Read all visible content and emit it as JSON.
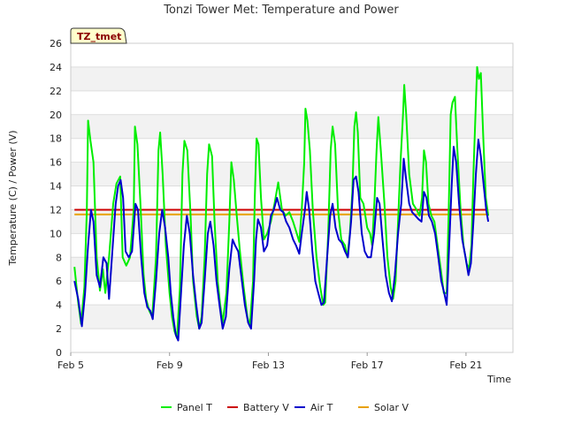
{
  "chart_data": {
    "type": "line",
    "title": "Tonzi Tower Met: Temperature and Power",
    "xlabel": "Time",
    "ylabel": "Temperature (C) / Power (V)",
    "badge": "TZ_tmet",
    "ylim": [
      0,
      26
    ],
    "yticks": [
      0,
      2,
      4,
      6,
      8,
      10,
      12,
      14,
      16,
      18,
      20,
      22,
      24,
      26
    ],
    "xlim": [
      5.0,
      22.9
    ],
    "xticks": [
      {
        "value": 5,
        "label": "Feb 5"
      },
      {
        "value": 9,
        "label": "Feb 9"
      },
      {
        "value": 13,
        "label": "Feb 13"
      },
      {
        "value": 17,
        "label": "Feb 17"
      },
      {
        "value": 21,
        "label": "Feb 21"
      }
    ],
    "series": [
      {
        "name": "Panel T",
        "color": "#00ee00",
        "points": [
          [
            5.15,
            7.2
          ],
          [
            5.3,
            4.2
          ],
          [
            5.42,
            2.4
          ],
          [
            5.55,
            5.5
          ],
          [
            5.65,
            12.0
          ],
          [
            5.7,
            19.5
          ],
          [
            5.8,
            17.8
          ],
          [
            5.92,
            16.0
          ],
          [
            6.05,
            8.0
          ],
          [
            6.18,
            5.2
          ],
          [
            6.3,
            7.0
          ],
          [
            6.4,
            5.0
          ],
          [
            6.55,
            8.0
          ],
          [
            6.72,
            12.5
          ],
          [
            6.85,
            14.2
          ],
          [
            7.0,
            14.8
          ],
          [
            7.1,
            8.0
          ],
          [
            7.25,
            7.3
          ],
          [
            7.4,
            8.0
          ],
          [
            7.55,
            12.0
          ],
          [
            7.6,
            19.0
          ],
          [
            7.7,
            17.5
          ],
          [
            7.82,
            12.5
          ],
          [
            7.95,
            6.5
          ],
          [
            8.05,
            4.5
          ],
          [
            8.18,
            3.5
          ],
          [
            8.3,
            3.0
          ],
          [
            8.45,
            8.0
          ],
          [
            8.55,
            17.0
          ],
          [
            8.62,
            18.5
          ],
          [
            8.72,
            15.0
          ],
          [
            8.85,
            9.0
          ],
          [
            9.0,
            5.0
          ],
          [
            9.1,
            3.0
          ],
          [
            9.2,
            1.8
          ],
          [
            9.3,
            1.2
          ],
          [
            9.42,
            5.5
          ],
          [
            9.52,
            15.0
          ],
          [
            9.6,
            17.8
          ],
          [
            9.72,
            17.0
          ],
          [
            9.85,
            11.5
          ],
          [
            9.95,
            6.0
          ],
          [
            10.1,
            3.0
          ],
          [
            10.2,
            2.0
          ],
          [
            10.3,
            3.0
          ],
          [
            10.42,
            8.0
          ],
          [
            10.52,
            15.0
          ],
          [
            10.6,
            17.5
          ],
          [
            10.72,
            16.5
          ],
          [
            10.82,
            11.0
          ],
          [
            10.95,
            6.0
          ],
          [
            11.05,
            4.0
          ],
          [
            11.15,
            2.5
          ],
          [
            11.3,
            5.0
          ],
          [
            11.42,
            11.0
          ],
          [
            11.5,
            16.0
          ],
          [
            11.6,
            14.5
          ],
          [
            11.72,
            11.5
          ],
          [
            11.85,
            8.5
          ],
          [
            12.0,
            5.5
          ],
          [
            12.15,
            3.0
          ],
          [
            12.25,
            2.2
          ],
          [
            12.38,
            6.0
          ],
          [
            12.45,
            13.0
          ],
          [
            12.52,
            18.0
          ],
          [
            12.6,
            17.5
          ],
          [
            12.7,
            13.0
          ],
          [
            12.82,
            9.5
          ],
          [
            12.95,
            10.0
          ],
          [
            13.1,
            11.0
          ],
          [
            13.25,
            12.5
          ],
          [
            13.4,
            14.3
          ],
          [
            13.55,
            12.0
          ],
          [
            13.7,
            11.5
          ],
          [
            13.85,
            11.8
          ],
          [
            14.0,
            11.0
          ],
          [
            14.15,
            10.0
          ],
          [
            14.25,
            9.3
          ],
          [
            14.35,
            12.0
          ],
          [
            14.45,
            16.0
          ],
          [
            14.5,
            20.5
          ],
          [
            14.58,
            19.5
          ],
          [
            14.68,
            17.0
          ],
          [
            14.8,
            12.0
          ],
          [
            14.95,
            8.0
          ],
          [
            15.1,
            5.5
          ],
          [
            15.22,
            4.0
          ],
          [
            15.3,
            4.2
          ],
          [
            15.42,
            10.0
          ],
          [
            15.52,
            17.0
          ],
          [
            15.6,
            19.0
          ],
          [
            15.7,
            17.5
          ],
          [
            15.82,
            12.0
          ],
          [
            15.95,
            9.5
          ],
          [
            16.1,
            9.0
          ],
          [
            16.2,
            8.0
          ],
          [
            16.3,
            10.0
          ],
          [
            16.4,
            13.5
          ],
          [
            16.48,
            19.0
          ],
          [
            16.55,
            20.2
          ],
          [
            16.62,
            18.5
          ],
          [
            16.72,
            13.0
          ],
          [
            16.85,
            12.5
          ],
          [
            17.0,
            10.5
          ],
          [
            17.12,
            10.0
          ],
          [
            17.2,
            9.0
          ],
          [
            17.3,
            13.0
          ],
          [
            17.38,
            17.0
          ],
          [
            17.45,
            19.8
          ],
          [
            17.55,
            17.0
          ],
          [
            17.7,
            12.5
          ],
          [
            17.82,
            8.0
          ],
          [
            17.95,
            5.5
          ],
          [
            18.05,
            4.5
          ],
          [
            18.15,
            6.0
          ],
          [
            18.25,
            11.0
          ],
          [
            18.35,
            16.0
          ],
          [
            18.45,
            20.0
          ],
          [
            18.5,
            22.5
          ],
          [
            18.58,
            20.0
          ],
          [
            18.7,
            15.0
          ],
          [
            18.85,
            12.5
          ],
          [
            19.0,
            12.0
          ],
          [
            19.12,
            11.5
          ],
          [
            19.22,
            13.0
          ],
          [
            19.3,
            17.0
          ],
          [
            19.38,
            16.0
          ],
          [
            19.48,
            12.5
          ],
          [
            19.6,
            11.5
          ],
          [
            19.72,
            11.0
          ],
          [
            19.85,
            9.0
          ],
          [
            19.98,
            7.0
          ],
          [
            20.1,
            5.0
          ],
          [
            20.22,
            5.0
          ],
          [
            20.3,
            12.0
          ],
          [
            20.38,
            20.0
          ],
          [
            20.45,
            21.0
          ],
          [
            20.55,
            21.5
          ],
          [
            20.65,
            17.0
          ],
          [
            20.78,
            12.0
          ],
          [
            20.9,
            9.0
          ],
          [
            21.02,
            7.5
          ],
          [
            21.12,
            7.0
          ],
          [
            21.22,
            9.0
          ],
          [
            21.3,
            15.0
          ],
          [
            21.4,
            21.0
          ],
          [
            21.45,
            24.0
          ],
          [
            21.52,
            23.0
          ],
          [
            21.6,
            23.5
          ],
          [
            21.7,
            18.0
          ],
          [
            21.8,
            13.0
          ],
          [
            21.9,
            11.5
          ]
        ]
      },
      {
        "name": "Battery V",
        "color": "#cc0000",
        "constant": 12.0
      },
      {
        "name": "Air T",
        "color": "#0000cc",
        "points": [
          [
            5.15,
            6.0
          ],
          [
            5.3,
            4.5
          ],
          [
            5.45,
            2.2
          ],
          [
            5.58,
            5.0
          ],
          [
            5.7,
            9.0
          ],
          [
            5.82,
            12.0
          ],
          [
            5.92,
            11.0
          ],
          [
            6.05,
            6.5
          ],
          [
            6.18,
            5.5
          ],
          [
            6.32,
            8.0
          ],
          [
            6.45,
            7.5
          ],
          [
            6.55,
            4.5
          ],
          [
            6.7,
            9.0
          ],
          [
            6.82,
            12.5
          ],
          [
            6.92,
            14.0
          ],
          [
            7.02,
            14.5
          ],
          [
            7.12,
            13.0
          ],
          [
            7.22,
            8.5
          ],
          [
            7.35,
            8.0
          ],
          [
            7.48,
            8.5
          ],
          [
            7.62,
            12.5
          ],
          [
            7.72,
            12.0
          ],
          [
            7.85,
            8.0
          ],
          [
            7.98,
            5.0
          ],
          [
            8.1,
            3.8
          ],
          [
            8.22,
            3.5
          ],
          [
            8.32,
            2.8
          ],
          [
            8.45,
            6.0
          ],
          [
            8.58,
            10.0
          ],
          [
            8.7,
            12.0
          ],
          [
            8.82,
            10.5
          ],
          [
            8.95,
            8.0
          ],
          [
            9.05,
            5.0
          ],
          [
            9.15,
            3.0
          ],
          [
            9.25,
            1.5
          ],
          [
            9.35,
            1.0
          ],
          [
            9.48,
            5.5
          ],
          [
            9.58,
            9.0
          ],
          [
            9.7,
            11.5
          ],
          [
            9.82,
            10.0
          ],
          [
            9.95,
            6.5
          ],
          [
            10.08,
            4.0
          ],
          [
            10.2,
            2.0
          ],
          [
            10.3,
            2.5
          ],
          [
            10.42,
            6.0
          ],
          [
            10.55,
            10.0
          ],
          [
            10.65,
            11.0
          ],
          [
            10.78,
            9.0
          ],
          [
            10.9,
            6.0
          ],
          [
            11.02,
            4.0
          ],
          [
            11.15,
            2.0
          ],
          [
            11.28,
            3.0
          ],
          [
            11.42,
            7.0
          ],
          [
            11.55,
            9.5
          ],
          [
            11.65,
            9.0
          ],
          [
            11.78,
            8.5
          ],
          [
            11.9,
            6.5
          ],
          [
            12.05,
            4.0
          ],
          [
            12.18,
            2.5
          ],
          [
            12.3,
            2.0
          ],
          [
            12.42,
            6.0
          ],
          [
            12.5,
            9.5
          ],
          [
            12.58,
            11.2
          ],
          [
            12.7,
            10.5
          ],
          [
            12.82,
            8.5
          ],
          [
            12.95,
            9.0
          ],
          [
            13.1,
            11.5
          ],
          [
            13.22,
            12.0
          ],
          [
            13.35,
            13.0
          ],
          [
            13.48,
            12.0
          ],
          [
            13.6,
            11.8
          ],
          [
            13.72,
            11.0
          ],
          [
            13.85,
            10.5
          ],
          [
            14.0,
            9.5
          ],
          [
            14.12,
            9.0
          ],
          [
            14.25,
            8.3
          ],
          [
            14.35,
            10.0
          ],
          [
            14.48,
            12.0
          ],
          [
            14.55,
            13.5
          ],
          [
            14.65,
            12.0
          ],
          [
            14.78,
            8.5
          ],
          [
            14.9,
            6.0
          ],
          [
            15.02,
            5.0
          ],
          [
            15.15,
            4.0
          ],
          [
            15.25,
            4.2
          ],
          [
            15.38,
            8.0
          ],
          [
            15.5,
            11.5
          ],
          [
            15.6,
            12.5
          ],
          [
            15.72,
            10.5
          ],
          [
            15.85,
            9.5
          ],
          [
            15.98,
            9.2
          ],
          [
            16.1,
            8.5
          ],
          [
            16.22,
            8.0
          ],
          [
            16.35,
            11.0
          ],
          [
            16.45,
            14.5
          ],
          [
            16.55,
            14.8
          ],
          [
            16.65,
            13.5
          ],
          [
            16.78,
            10.0
          ],
          [
            16.9,
            8.5
          ],
          [
            17.02,
            8.0
          ],
          [
            17.15,
            8.0
          ],
          [
            17.28,
            10.0
          ],
          [
            17.4,
            13.0
          ],
          [
            17.5,
            12.5
          ],
          [
            17.62,
            9.5
          ],
          [
            17.75,
            6.5
          ],
          [
            17.88,
            5.0
          ],
          [
            18.0,
            4.3
          ],
          [
            18.12,
            6.5
          ],
          [
            18.25,
            10.0
          ],
          [
            18.38,
            12.5
          ],
          [
            18.48,
            16.3
          ],
          [
            18.58,
            14.5
          ],
          [
            18.7,
            12.5
          ],
          [
            18.82,
            11.8
          ],
          [
            18.95,
            11.5
          ],
          [
            19.08,
            11.2
          ],
          [
            19.2,
            11.0
          ],
          [
            19.3,
            13.5
          ],
          [
            19.4,
            13.0
          ],
          [
            19.5,
            11.5
          ],
          [
            19.62,
            11.0
          ],
          [
            19.75,
            10.0
          ],
          [
            19.88,
            8.0
          ],
          [
            20.0,
            6.0
          ],
          [
            20.12,
            5.0
          ],
          [
            20.22,
            4.0
          ],
          [
            20.32,
            9.0
          ],
          [
            20.42,
            14.0
          ],
          [
            20.5,
            17.3
          ],
          [
            20.6,
            16.0
          ],
          [
            20.72,
            12.5
          ],
          [
            20.85,
            9.5
          ],
          [
            20.98,
            8.0
          ],
          [
            21.1,
            6.5
          ],
          [
            21.2,
            7.5
          ],
          [
            21.3,
            11.0
          ],
          [
            21.4,
            15.0
          ],
          [
            21.5,
            17.9
          ],
          [
            21.6,
            16.5
          ],
          [
            21.72,
            14.0
          ],
          [
            21.82,
            12.0
          ],
          [
            21.9,
            11.0
          ]
        ]
      },
      {
        "name": "Solar V",
        "color": "#e8a000",
        "constant": 11.6
      }
    ]
  }
}
